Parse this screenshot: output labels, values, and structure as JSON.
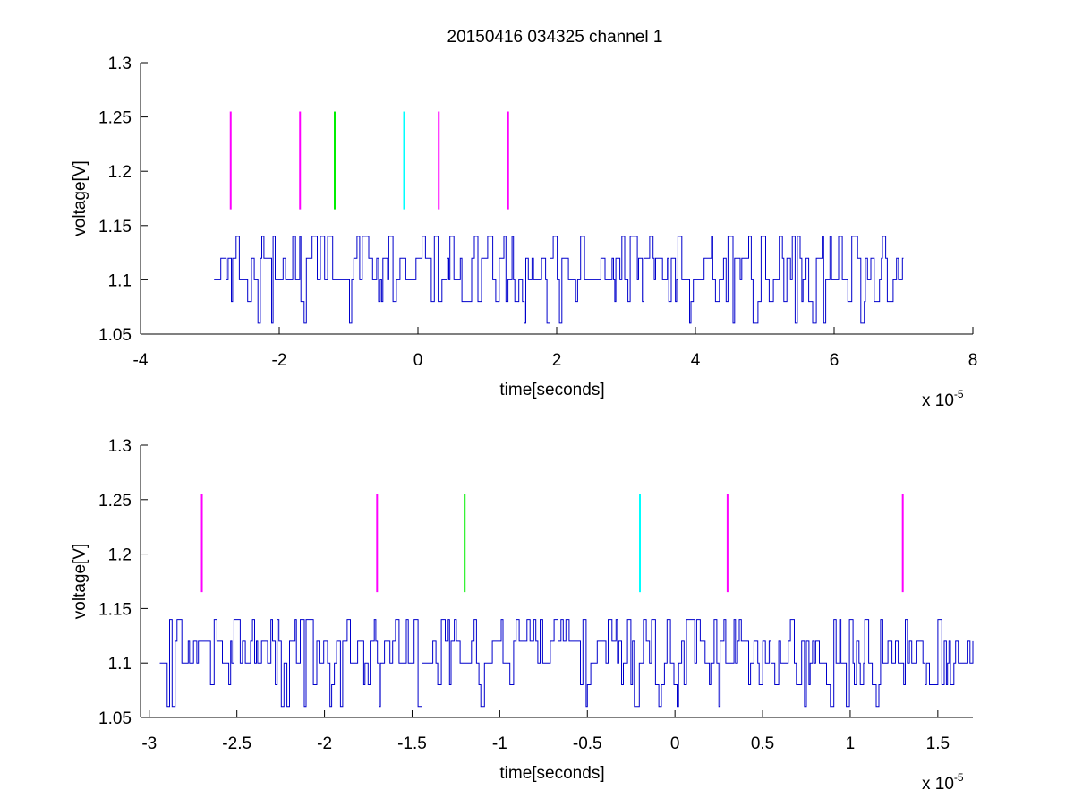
{
  "figure_title": "20150416 034325 channel 1",
  "colors": {
    "trace": "#0000cc",
    "marker_magenta": "#ff00ff",
    "marker_green": "#00ee00",
    "marker_cyan": "#00ffff"
  },
  "chart_data": [
    {
      "type": "line",
      "title": "20150416 034325 channel 1",
      "xlabel": "time[seconds]",
      "ylabel": "voltage[V]",
      "x_exponent_base": "x 10",
      "x_exponent_power": "-5",
      "xlim": [
        -4,
        8
      ],
      "ylim": [
        1.05,
        1.3
      ],
      "xticks": [
        -4,
        -2,
        0,
        2,
        4,
        6,
        8
      ],
      "xtick_labels": [
        "-4",
        "-2",
        "0",
        "2",
        "4",
        "6",
        "8"
      ],
      "yticks": [
        1.05,
        1.1,
        1.15,
        1.2,
        1.25,
        1.3
      ],
      "ytick_labels": [
        "1.05",
        "1.1",
        "1.15",
        "1.2",
        "1.25",
        "1.3"
      ],
      "grid": false,
      "trace": {
        "x_start": -2.94,
        "x_end": 7.0,
        "baseline": 1.1,
        "levels": [
          1.06,
          1.08,
          1.1,
          1.12,
          1.14
        ]
      },
      "markers": [
        {
          "x": -2.7,
          "y0": 1.165,
          "y1": 1.255,
          "color": "magenta"
        },
        {
          "x": -1.7,
          "y0": 1.165,
          "y1": 1.255,
          "color": "magenta"
        },
        {
          "x": -1.2,
          "y0": 1.165,
          "y1": 1.255,
          "color": "green"
        },
        {
          "x": -0.2,
          "y0": 1.165,
          "y1": 1.255,
          "color": "cyan"
        },
        {
          "x": 0.3,
          "y0": 1.165,
          "y1": 1.255,
          "color": "magenta"
        },
        {
          "x": 1.3,
          "y0": 1.165,
          "y1": 1.255,
          "color": "magenta"
        }
      ]
    },
    {
      "type": "line",
      "title": "",
      "xlabel": "time[seconds]",
      "ylabel": "voltage[V]",
      "x_exponent_base": "x 10",
      "x_exponent_power": "-5",
      "xlim": [
        -3.05,
        1.7
      ],
      "ylim": [
        1.05,
        1.3
      ],
      "xticks": [
        -3,
        -2.5,
        -2,
        -1.5,
        -1,
        -0.5,
        0,
        0.5,
        1,
        1.5
      ],
      "xtick_labels": [
        "-3",
        "-2.5",
        "-2",
        "-1.5",
        "-1",
        "-0.5",
        "0",
        "0.5",
        "1",
        "1.5"
      ],
      "yticks": [
        1.05,
        1.1,
        1.15,
        1.2,
        1.25,
        1.3
      ],
      "ytick_labels": [
        "1.05",
        "1.1",
        "1.15",
        "1.2",
        "1.25",
        "1.3"
      ],
      "grid": false,
      "trace": {
        "x_start": -2.94,
        "x_end": 1.7,
        "baseline": 1.1,
        "levels": [
          1.06,
          1.08,
          1.1,
          1.12,
          1.14
        ]
      },
      "markers": [
        {
          "x": -2.7,
          "y0": 1.165,
          "y1": 1.255,
          "color": "magenta"
        },
        {
          "x": -1.7,
          "y0": 1.165,
          "y1": 1.255,
          "color": "magenta"
        },
        {
          "x": -1.2,
          "y0": 1.165,
          "y1": 1.255,
          "color": "green"
        },
        {
          "x": -0.2,
          "y0": 1.165,
          "y1": 1.255,
          "color": "cyan"
        },
        {
          "x": 0.3,
          "y0": 1.165,
          "y1": 1.255,
          "color": "magenta"
        },
        {
          "x": 1.3,
          "y0": 1.165,
          "y1": 1.255,
          "color": "magenta"
        }
      ]
    }
  ]
}
